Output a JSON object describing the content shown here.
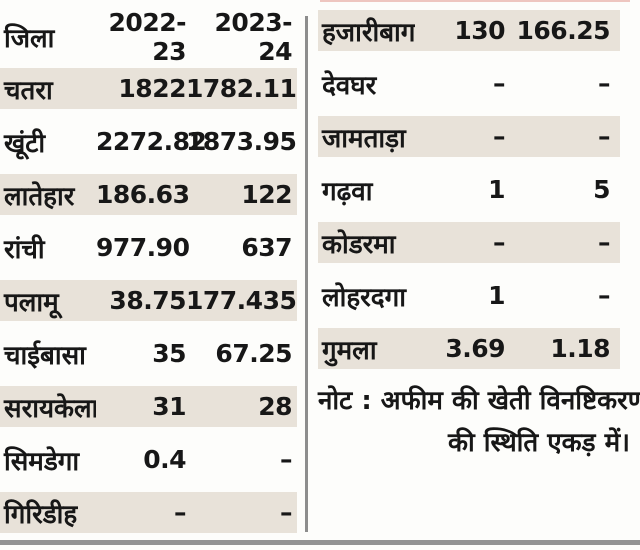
{
  "colors": {
    "row_band": "#e8e2d9",
    "divider": "#8d8d8d",
    "bottom_rule": "#939393",
    "text": "#171717",
    "top_accent": "#eec6c0",
    "background": "#fdfdfb"
  },
  "left_table": {
    "columns": [
      "जिला",
      "2022-23",
      "2023-24"
    ],
    "rows": [
      {
        "district": "चतरा",
        "v2022": "1822",
        "v2023": "1782.11"
      },
      {
        "district": "खूंटी",
        "v2022": "2272.82",
        "v2023": "1873.95"
      },
      {
        "district": "लातेहार",
        "v2022": "186.63",
        "v2023": "122"
      },
      {
        "district": "रांची",
        "v2022": "977.90",
        "v2023": "637"
      },
      {
        "district": "पलामू",
        "v2022": "38.75",
        "v2023": "177.435"
      },
      {
        "district": "चाईबासा",
        "v2022": "35",
        "v2023": "67.25"
      },
      {
        "district": "सरायकेला",
        "v2022": "31",
        "v2023": "28"
      },
      {
        "district": "सिमडेगा",
        "v2022": "0.4",
        "v2023": "–"
      },
      {
        "district": "गिरिडीह",
        "v2022": "–",
        "v2023": "–"
      }
    ]
  },
  "right_table": {
    "rows": [
      {
        "district": "हजारीबाग",
        "v2022": "130",
        "v2023": "166.25"
      },
      {
        "district": "देवघर",
        "v2022": "–",
        "v2023": "–"
      },
      {
        "district": "जामताड़ा",
        "v2022": "–",
        "v2023": "–"
      },
      {
        "district": "गढ़वा",
        "v2022": "1",
        "v2023": "5"
      },
      {
        "district": "कोडरमा",
        "v2022": "–",
        "v2023": "–"
      },
      {
        "district": "लोहरदगा",
        "v2022": "1",
        "v2023": "–"
      },
      {
        "district": "गुमला",
        "v2022": "3.69",
        "v2023": "1.18"
      }
    ]
  },
  "note": {
    "line1": "नोट : अफीम की खेती विनष्टिकरण",
    "line2": "की स्थिति एकड़ में।"
  },
  "chart_data": {
    "type": "table",
    "title": "",
    "columns": [
      "जिला",
      "2022-23",
      "2023-24"
    ],
    "rows": [
      [
        "चतरा",
        1822,
        1782.11
      ],
      [
        "खूंटी",
        2272.82,
        1873.95
      ],
      [
        "लातेहार",
        186.63,
        122
      ],
      [
        "रांची",
        977.9,
        637
      ],
      [
        "पलामू",
        38.75,
        177.435
      ],
      [
        "चाईबासा",
        35,
        67.25
      ],
      [
        "सरायकेला",
        31,
        28
      ],
      [
        "सिमडेगा",
        0.4,
        null
      ],
      [
        "गिरिडीह",
        null,
        null
      ],
      [
        "हजारीबाग",
        130,
        166.25
      ],
      [
        "देवघर",
        null,
        null
      ],
      [
        "जामताड़ा",
        null,
        null
      ],
      [
        "गढ़वा",
        1,
        5
      ],
      [
        "कोडरमा",
        null,
        null
      ],
      [
        "लोहरदगा",
        1,
        null
      ],
      [
        "गुमला",
        3.69,
        1.18
      ]
    ],
    "missing_value_marker": "–",
    "note": "नोट : अफीम की खेती विनष्टिकरण की स्थिति एकड़ में।",
    "layout": {
      "split_columns": 2,
      "shaded_rows": "alternating"
    }
  }
}
